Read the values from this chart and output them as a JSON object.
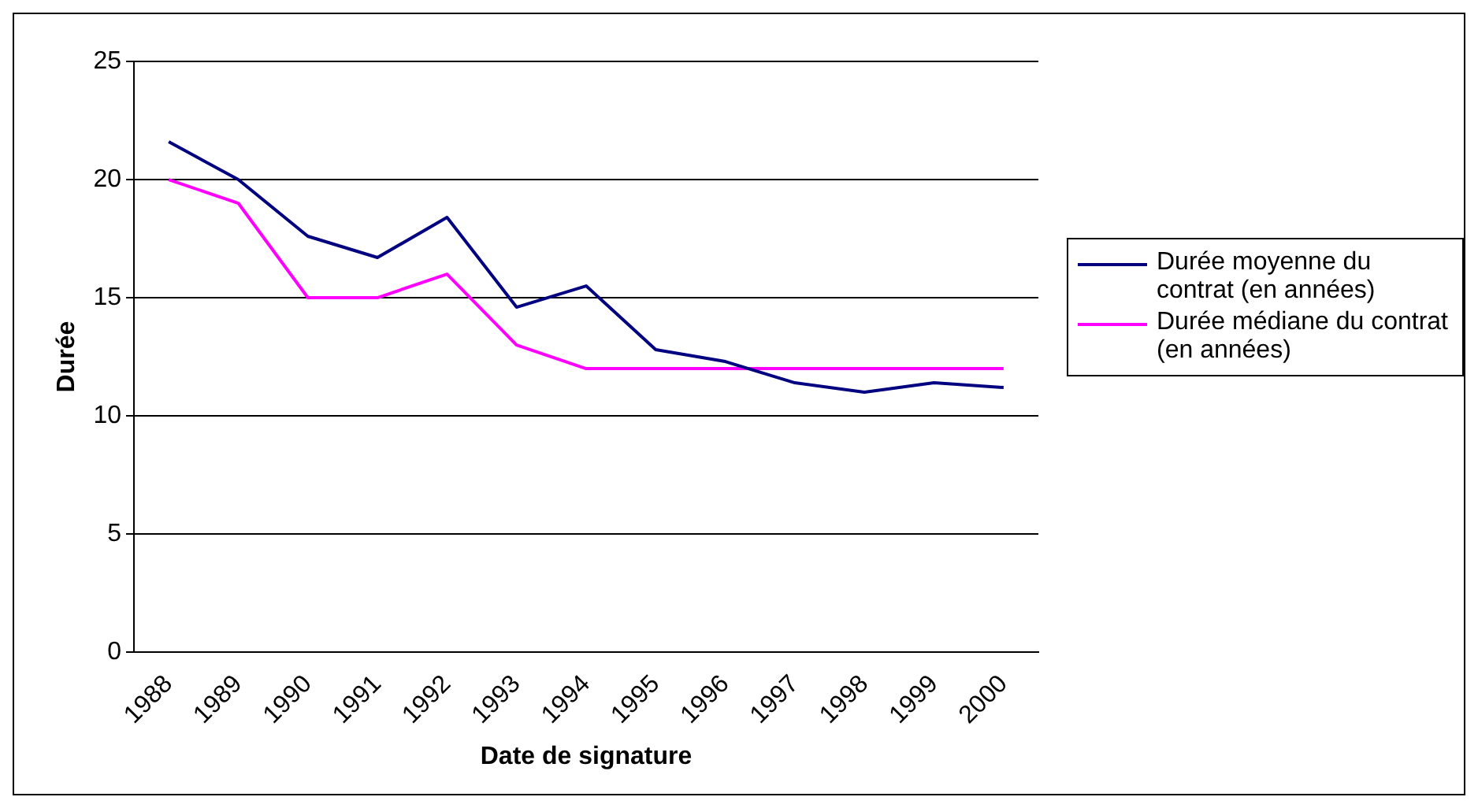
{
  "chart_data": {
    "type": "line",
    "xlabel": "Date de signature",
    "ylabel": "Durée",
    "categories": [
      "1988",
      "1989",
      "1990",
      "1991",
      "1992",
      "1993",
      "1994",
      "1995",
      "1996",
      "1997",
      "1998",
      "1999",
      "2000"
    ],
    "series": [
      {
        "name": "Durée moyenne du contrat (en années)",
        "color": "#000080",
        "values": [
          21.6,
          20,
          17.6,
          16.7,
          18.4,
          14.6,
          15.5,
          12.8,
          12.3,
          11.4,
          11.0,
          11.4,
          11.2
        ]
      },
      {
        "name": "Durée médiane du contrat (en années)",
        "color": "#ff00ff",
        "values": [
          20,
          19,
          15,
          15,
          16,
          13,
          12,
          12,
          12,
          12,
          12,
          12,
          12
        ]
      }
    ],
    "ylim": [
      0,
      25
    ],
    "yticks": [
      0,
      5,
      10,
      15,
      20,
      25
    ],
    "grid": "y",
    "legend": "right",
    "marker": "none"
  }
}
